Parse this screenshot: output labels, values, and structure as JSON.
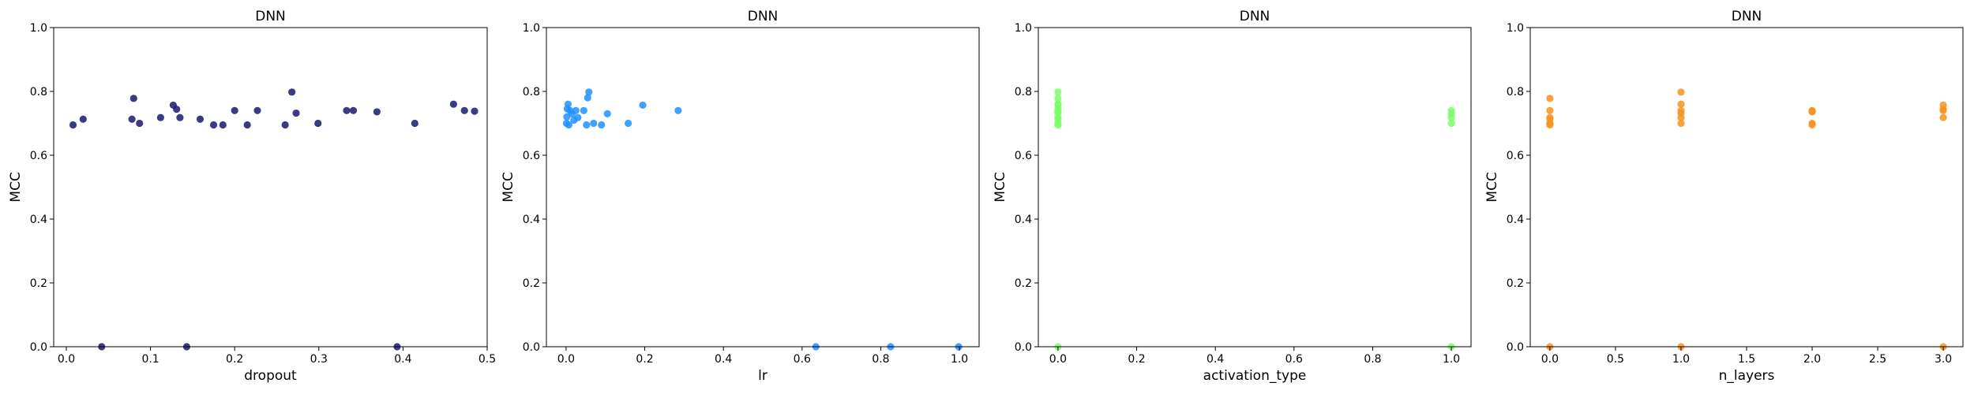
{
  "chart_data": [
    {
      "type": "scatter",
      "title": "DNN",
      "xlabel": "dropout",
      "ylabel": "MCC",
      "xlim": [
        -0.015,
        0.5
      ],
      "ylim": [
        0,
        1
      ],
      "xticks": [
        0.0,
        0.1,
        0.2,
        0.3,
        0.4,
        0.5
      ],
      "xtick_labels": [
        "0.0",
        "0.1",
        "0.2",
        "0.3",
        "0.4",
        "0.5"
      ],
      "yticks": [
        0.0,
        0.2,
        0.4,
        0.6,
        0.8,
        1.0
      ],
      "ytick_labels": [
        "0.0",
        "0.2",
        "0.4",
        "0.6",
        "0.8",
        "1.0"
      ],
      "color": "#191970",
      "x": [
        0.008,
        0.02,
        0.042,
        0.078,
        0.08,
        0.087,
        0.112,
        0.127,
        0.131,
        0.135,
        0.143,
        0.159,
        0.175,
        0.186,
        0.2,
        0.215,
        0.227,
        0.26,
        0.268,
        0.273,
        0.299,
        0.333,
        0.341,
        0.369,
        0.393,
        0.414,
        0.46,
        0.473,
        0.485
      ],
      "y": [
        0.695,
        0.713,
        0.0,
        0.713,
        0.778,
        0.7,
        0.718,
        0.757,
        0.744,
        0.718,
        0.0,
        0.713,
        0.695,
        0.695,
        0.74,
        0.695,
        0.74,
        0.695,
        0.798,
        0.732,
        0.7,
        0.74,
        0.74,
        0.736,
        0.0,
        0.7,
        0.76,
        0.74,
        0.738
      ]
    },
    {
      "type": "scatter",
      "title": "DNN",
      "xlabel": "lr",
      "ylabel": "MCC",
      "xlim": [
        -0.05,
        1.05
      ],
      "ylim": [
        0,
        1
      ],
      "xticks": [
        0.0,
        0.2,
        0.4,
        0.6,
        0.8,
        1.0
      ],
      "xtick_labels": [
        "0.0",
        "0.2",
        "0.4",
        "0.6",
        "0.8",
        "1.0"
      ],
      "yticks": [
        0.0,
        0.2,
        0.4,
        0.6,
        0.8,
        1.0
      ],
      "ytick_labels": [
        "0.0",
        "0.2",
        "0.4",
        "0.6",
        "0.8",
        "1.0"
      ],
      "color": "#1e90ff",
      "x": [
        0.001,
        0.002,
        0.003,
        0.005,
        0.007,
        0.01,
        0.015,
        0.02,
        0.025,
        0.03,
        0.045,
        0.052,
        0.055,
        0.058,
        0.07,
        0.09,
        0.105,
        0.158,
        0.195,
        0.285,
        0.635,
        0.825,
        0.998
      ],
      "y": [
        0.7,
        0.72,
        0.745,
        0.76,
        0.695,
        0.74,
        0.73,
        0.71,
        0.74,
        0.718,
        0.74,
        0.695,
        0.78,
        0.798,
        0.7,
        0.695,
        0.73,
        0.7,
        0.757,
        0.74,
        0.0,
        0.0,
        0.0
      ]
    },
    {
      "type": "scatter",
      "title": "DNN",
      "xlabel": "activation_type",
      "ylabel": "MCC",
      "xlim": [
        -0.05,
        1.05
      ],
      "ylim": [
        0,
        1
      ],
      "xticks": [
        0.0,
        0.2,
        0.4,
        0.6,
        0.8,
        1.0
      ],
      "xtick_labels": [
        "0.0",
        "0.2",
        "0.4",
        "0.6",
        "0.8",
        "1.0"
      ],
      "yticks": [
        0.0,
        0.2,
        0.4,
        0.6,
        0.8,
        1.0
      ],
      "ytick_labels": [
        "0.0",
        "0.2",
        "0.4",
        "0.6",
        "0.8",
        "1.0"
      ],
      "color": "#7cfc6a",
      "x": [
        0,
        0,
        0,
        0,
        0,
        0,
        0,
        0,
        0,
        0,
        0,
        0,
        0,
        1,
        1,
        1,
        1,
        1
      ],
      "y": [
        0.695,
        0.7,
        0.713,
        0.718,
        0.732,
        0.74,
        0.744,
        0.757,
        0.76,
        0.778,
        0.798,
        0.736,
        0.0,
        0.7,
        0.718,
        0.73,
        0.74,
        0.0
      ]
    },
    {
      "type": "scatter",
      "title": "DNN",
      "xlabel": "n_layers",
      "ylabel": "MCC",
      "xlim": [
        -0.15,
        3.15
      ],
      "ylim": [
        0,
        1
      ],
      "xticks": [
        0.0,
        0.5,
        1.0,
        1.5,
        2.0,
        2.5,
        3.0
      ],
      "xtick_labels": [
        "0.0",
        "0.5",
        "1.0",
        "1.5",
        "2.0",
        "2.5",
        "3.0"
      ],
      "yticks": [
        0.0,
        0.2,
        0.4,
        0.6,
        0.8,
        1.0
      ],
      "ytick_labels": [
        "0.0",
        "0.2",
        "0.4",
        "0.6",
        "0.8",
        "1.0"
      ],
      "color": "#f7931e",
      "x": [
        0,
        0,
        0,
        0,
        0,
        0,
        0,
        0,
        1,
        1,
        1,
        1,
        1,
        1,
        1,
        2,
        2,
        2,
        2,
        2,
        3,
        3,
        3,
        3,
        3
      ],
      "y": [
        0.695,
        0.7,
        0.713,
        0.718,
        0.74,
        0.778,
        0.7,
        0.0,
        0.7,
        0.718,
        0.732,
        0.74,
        0.76,
        0.798,
        0.0,
        0.695,
        0.7,
        0.736,
        0.74,
        0.738,
        0.718,
        0.744,
        0.757,
        0.74,
        0.0
      ]
    }
  ]
}
